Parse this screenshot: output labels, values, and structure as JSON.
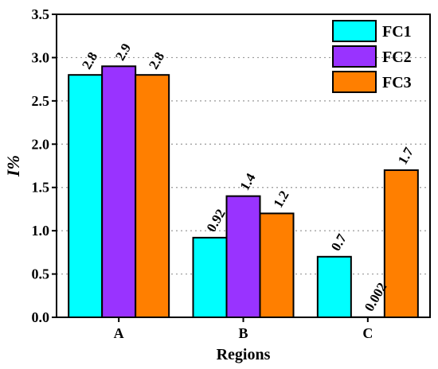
{
  "chart_data": {
    "type": "bar",
    "categories": [
      "A",
      "B",
      "C"
    ],
    "series": [
      {
        "name": "FC1",
        "color": "#00FFFF",
        "values": [
          2.8,
          0.92,
          0.7
        ],
        "labels": [
          "2.8",
          "0.92",
          "0.7"
        ]
      },
      {
        "name": "FC2",
        "color": "#9933FF",
        "values": [
          2.9,
          1.4,
          0.002
        ],
        "labels": [
          "2.9",
          "1.4",
          "0.002"
        ]
      },
      {
        "name": "FC3",
        "color": "#FF7F00",
        "values": [
          2.8,
          1.2,
          1.7
        ],
        "labels": [
          "2.8",
          "1.2",
          "1.7"
        ]
      }
    ],
    "xlabel": "Regions",
    "ylabel": "I%",
    "ylim": [
      0,
      3.5
    ],
    "yticks": [
      "0.0",
      "0.5",
      "1.0",
      "1.5",
      "2.0",
      "2.5",
      "3.0",
      "3.5"
    ],
    "grid": "horizontal dotted",
    "legend_position": "top-right"
  }
}
